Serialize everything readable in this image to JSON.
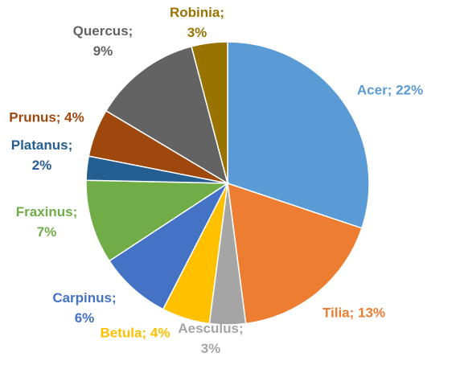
{
  "chart_data": {
    "type": "pie",
    "values": [
      22,
      13,
      3,
      4,
      6,
      7,
      2,
      4,
      9,
      3
    ],
    "value_labels": [
      "Acer; 22%",
      "Tilia; 13%",
      "Aesculus; 3%",
      "Betula; 4%",
      "Carpinus; 6%",
      "Fraxinus; 7%",
      "Platanus; 2%",
      "Prunus; 4%",
      "Quercus; 9%",
      "Robinia; 3%"
    ],
    "colors": [
      "#5b9bd5",
      "#ed7d31",
      "#a5a5a5",
      "#ffc000",
      "#4472c4",
      "#70ad47",
      "#255e91",
      "#9e480e",
      "#636363",
      "#997300"
    ]
  }
}
